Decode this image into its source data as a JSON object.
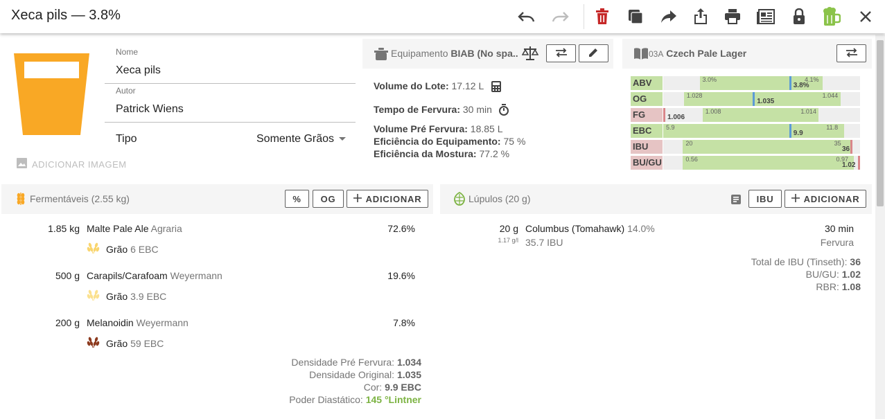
{
  "header": {
    "title": "Xeca pils — 3.8%"
  },
  "toolbar": {
    "icons": [
      "undo-icon",
      "redo-icon",
      "delete-icon",
      "copy-icon",
      "share-icon",
      "export-icon",
      "print-icon",
      "newspaper-icon",
      "lock-icon",
      "beer-mug-icon",
      "close-icon"
    ]
  },
  "recipe": {
    "name_label": "Nome",
    "name": "Xeca pils",
    "author_label": "Autor",
    "author": "Patrick Wiens",
    "type_label": "Tipo",
    "type": "Somente Grãos",
    "add_image": "ADICIONAR IMAGEM",
    "beer_color": "#f9a825"
  },
  "equipment": {
    "label": "Equipamento",
    "name": "BIAB (No spa...",
    "batch_label": "Volume do Lote:",
    "batch": "17.12 L",
    "boil_label": "Tempo de Fervura:",
    "boil": "30 min",
    "preboil_label": "Volume Pré Fervura:",
    "preboil": "18.85 L",
    "equip_eff_label": "Eficiência do Equipamento:",
    "equip_eff": "75 %",
    "mash_eff_label": "Eficiência da Mostura:",
    "mash_eff": "77.2 %"
  },
  "style": {
    "code": "03A",
    "name": "Czech Pale Lager",
    "stats": [
      {
        "label": "ABV",
        "min": "3.0%",
        "max": "4.1%",
        "value": "3.8%",
        "min_f": 0.185,
        "max_f": 0.81,
        "val_f": 0.64,
        "in_range": true
      },
      {
        "label": "OG",
        "min": "1.028",
        "max": "1.044",
        "value": "1.035",
        "min_f": 0.105,
        "max_f": 0.9,
        "val_f": 0.455,
        "in_range": true
      },
      {
        "label": "FG",
        "min": "1.008",
        "max": "1.014",
        "value": "1.006",
        "min_f": 0.2,
        "max_f": 0.79,
        "val_f": 0.0,
        "in_range": false
      },
      {
        "label": "EBC",
        "min": "5.9",
        "max": "11.8",
        "value": "9.9",
        "min_f": 0.0,
        "max_f": 0.92,
        "val_f": 0.64,
        "in_range": true
      },
      {
        "label": "IBU",
        "min": "20",
        "max": "35",
        "value": "36",
        "min_f": 0.1,
        "max_f": 0.96,
        "val_f": 0.95,
        "in_range": false
      },
      {
        "label": "BU/GU",
        "min": "0.56",
        "max": "0.97",
        "value": "1.02",
        "min_f": 0.1,
        "max_f": 0.97,
        "val_f": 0.99,
        "in_range": false
      }
    ]
  },
  "fermentables": {
    "title": "Fermentáveis (2.55 kg)",
    "btn_pct": "%",
    "btn_og": "OG",
    "btn_add": "ADICIONAR",
    "items": [
      {
        "amount": "1.85 kg",
        "name": "Malte Pale Ale",
        "supplier": "Agraria",
        "pct": "72.6%",
        "type": "Grão",
        "color": "6 EBC",
        "grain_color": "#f9d56e"
      },
      {
        "amount": "500 g",
        "name": "Carapils/Carafoam",
        "supplier": "Weyermann",
        "pct": "19.6%",
        "type": "Grão",
        "color": "3.9 EBC",
        "grain_color": "#fbe18f"
      },
      {
        "amount": "200 g",
        "name": "Melanoidin",
        "supplier": "Weyermann",
        "pct": "7.8%",
        "type": "Grão",
        "color": "59 EBC",
        "grain_color": "#8d3b1f"
      }
    ],
    "summary": {
      "preboil_label": "Densidade Pré Fervura:",
      "preboil": "1.034",
      "og_label": "Densidade Original:",
      "og": "1.035",
      "color_label": "Cor:",
      "color": "9.9 EBC",
      "dp_label": "Poder Diastático:",
      "dp": "145 °Lintner",
      "dp_color": "#7cb342"
    }
  },
  "hops": {
    "title": "Lúpulos (20 g)",
    "btn_ibu": "IBU",
    "btn_add": "ADICIONAR",
    "items": [
      {
        "amount": "20 g",
        "rate": "1.17 g/l",
        "name": "Columbus (Tomahawk)",
        "alpha": "14.0%",
        "ibu": "35.7 IBU",
        "time": "30 min",
        "use": "Fervura"
      }
    ],
    "summary": {
      "ibu_label": "Total de IBU (Tinseth):",
      "ibu": "36",
      "bugu_label": "BU/GU:",
      "bugu": "1.02",
      "rbr_label": "RBR:",
      "rbr": "1.08"
    }
  }
}
